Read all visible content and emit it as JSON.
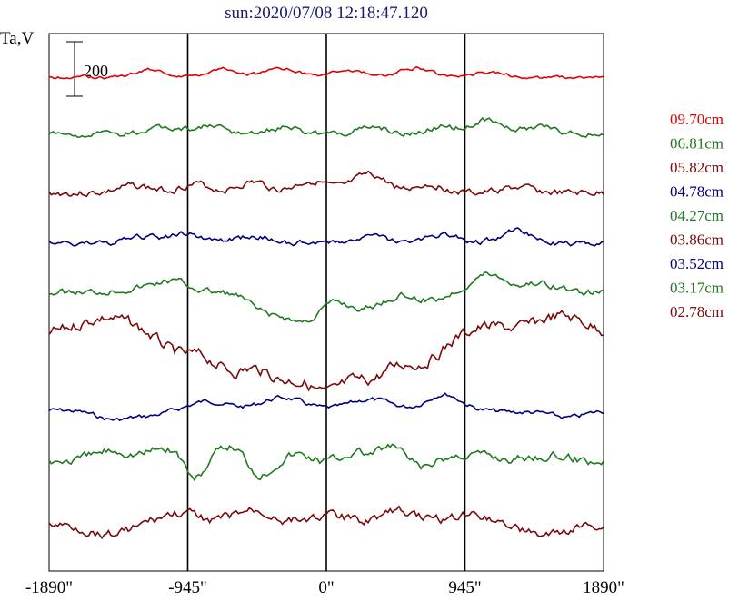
{
  "chart_data": {
    "type": "line",
    "title": "sun:2020/07/08 12:18:47.120",
    "ylabel": "Ta,V",
    "scale_bar_label": "200",
    "scale_bar_value": 200,
    "x_ticks": [
      {
        "value": -1890,
        "label": "-1890\""
      },
      {
        "value": -945,
        "label": "-945\""
      },
      {
        "value": 0,
        "label": "0\""
      },
      {
        "value": 945,
        "label": "945\""
      },
      {
        "value": 1890,
        "label": "1890\""
      }
    ],
    "xlim": [
      -1890,
      1890
    ],
    "vertical_markers": [
      -945,
      0,
      945
    ],
    "grid": false,
    "legend_position": "right",
    "series": [
      {
        "name": "09.70cm",
        "color": "#e00000",
        "baseline": 85,
        "bumps": [
          [
            -1200,
            -8,
            150
          ],
          [
            -700,
            -10,
            150
          ],
          [
            -300,
            -9,
            150
          ],
          [
            150,
            -8,
            150
          ],
          [
            600,
            -10,
            150
          ],
          [
            1100,
            -6,
            150
          ]
        ],
        "noise": 3,
        "seed": 1
      },
      {
        "name": "06.81cm",
        "color": "#1f7a1f",
        "baseline": 148,
        "bumps": [
          [
            -1100,
            -6,
            160
          ],
          [
            -800,
            -8,
            160
          ],
          [
            -300,
            -7,
            160
          ],
          [
            300,
            -8,
            160
          ],
          [
            800,
            -8,
            160
          ],
          [
            1100,
            -16,
            140
          ],
          [
            1450,
            -8,
            160
          ]
        ],
        "noise": 5,
        "seed": 2
      },
      {
        "name": "05.82cm",
        "color": "#7a0a0a",
        "baseline": 213,
        "bumps": [
          [
            -1300,
            -8,
            160
          ],
          [
            -900,
            -10,
            150
          ],
          [
            -500,
            -12,
            150
          ],
          [
            -100,
            -14,
            150
          ],
          [
            300,
            -20,
            160
          ],
          [
            700,
            -10,
            150
          ],
          [
            1300,
            -6,
            150
          ]
        ],
        "noise": 6,
        "seed": 3
      },
      {
        "name": "04.78cm",
        "color": "#00007a",
        "baseline": 268,
        "bumps": [
          [
            -1250,
            -6,
            160
          ],
          [
            -950,
            -10,
            160
          ],
          [
            -500,
            -8,
            160
          ],
          [
            300,
            -8,
            160
          ],
          [
            800,
            -10,
            160
          ],
          [
            1300,
            -14,
            150
          ]
        ],
        "noise": 5,
        "seed": 4
      },
      {
        "name": "04.27cm",
        "color": "#1f7a1f",
        "baseline": 322,
        "bumps": [
          [
            -1300,
            -4,
            200
          ],
          [
            -1050,
            -12,
            160
          ],
          [
            -400,
            22,
            160
          ],
          [
            -150,
            30,
            160
          ],
          [
            250,
            18,
            180
          ],
          [
            700,
            8,
            160
          ],
          [
            1100,
            -20,
            160
          ],
          [
            1450,
            -10,
            180
          ]
        ],
        "noise": 6,
        "seed": 5
      },
      {
        "name": "03.86cm",
        "color": "#7a0a0a",
        "baseline": 368,
        "bumps": [
          [
            -1500,
            -18,
            260
          ],
          [
            -1000,
            20,
            180
          ],
          [
            -650,
            38,
            200
          ],
          [
            -300,
            45,
            200
          ],
          [
            0,
            55,
            180
          ],
          [
            300,
            45,
            200
          ],
          [
            650,
            30,
            200
          ],
          [
            1100,
            -8,
            200
          ],
          [
            1600,
            -20,
            240
          ]
        ],
        "noise": 10,
        "seed": 6
      },
      {
        "name": "03.52cm",
        "color": "#00007a",
        "baseline": 452,
        "bumps": [
          [
            -1450,
            10,
            170
          ],
          [
            -1200,
            5,
            150
          ],
          [
            -800,
            -10,
            180
          ],
          [
            -300,
            -14,
            200
          ],
          [
            300,
            -12,
            200
          ],
          [
            800,
            -18,
            160
          ],
          [
            1300,
            2,
            180
          ],
          [
            1650,
            8,
            160
          ]
        ],
        "noise": 4,
        "seed": 7
      },
      {
        "name": "03.17cm",
        "color": "#1f7a1f",
        "baseline": 508,
        "bumps": [
          [
            -1450,
            -12,
            180
          ],
          [
            -1100,
            -14,
            160
          ],
          [
            -900,
            22,
            80
          ],
          [
            -650,
            -16,
            120
          ],
          [
            -450,
            15,
            100
          ],
          [
            -200,
            -8,
            120
          ],
          [
            200,
            -10,
            120
          ],
          [
            450,
            -16,
            120
          ],
          [
            650,
            8,
            120
          ],
          [
            1000,
            -8,
            200
          ],
          [
            1500,
            -6,
            200
          ]
        ],
        "noise": 8,
        "seed": 8
      },
      {
        "name": "02.78cm",
        "color": "#7a0a0a",
        "baseline": 578,
        "bumps": [
          [
            -1500,
            10,
            200
          ],
          [
            -1000,
            -12,
            200
          ],
          [
            -500,
            -15,
            200
          ],
          [
            0,
            -10,
            200
          ],
          [
            500,
            -15,
            200
          ],
          [
            1000,
            -12,
            200
          ],
          [
            1500,
            12,
            200
          ]
        ],
        "noise": 8,
        "seed": 9
      }
    ]
  }
}
